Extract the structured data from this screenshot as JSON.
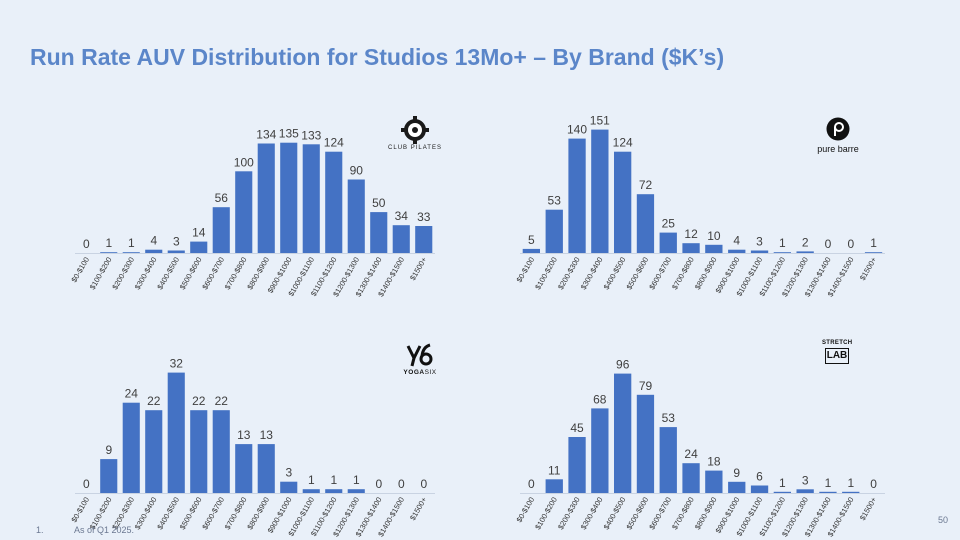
{
  "title": "Run Rate AUV Distribution for Studios 13Mo+ – By Brand ($K’s)",
  "footnote": {
    "marker": "1.",
    "text": "As of Q1 2025."
  },
  "page_number": "50",
  "colors": {
    "bar": "#4472c4",
    "title": "#5b86c9",
    "background": "#e9f0f9",
    "label": "#404040"
  },
  "logos": {
    "club_pilates": {
      "icon": "flower-gear-icon",
      "text": "CLUB PILATES"
    },
    "pure_barre": {
      "icon": "circle-p-icon",
      "text": "pure barre"
    },
    "yogasix": {
      "icon": "y6-icon",
      "text_bold": "YOGA",
      "text_light": "SIX"
    },
    "stretch_lab": {
      "icon": "stretch-lab-icon",
      "top": "STRETCH",
      "bottom": "LAB"
    }
  },
  "chart_data": [
    {
      "type": "bar",
      "brand": "Club Pilates",
      "categories": [
        "$0-$100",
        "$100-$200",
        "$200-$300",
        "$300-$400",
        "$400-$500",
        "$500-$600",
        "$600-$700",
        "$700-$800",
        "$800-$900",
        "$900-$1000",
        "$1000-$1100",
        "$1100-$1200",
        "$1200-$1300",
        "$1300-$1400",
        "$1400-$1500",
        "$1500+"
      ],
      "values": [
        0,
        1,
        1,
        4,
        3,
        14,
        56,
        100,
        134,
        135,
        133,
        124,
        90,
        50,
        34,
        33
      ],
      "ylim": [
        0,
        175
      ]
    },
    {
      "type": "bar",
      "brand": "Pure Barre",
      "categories": [
        "$0-$100",
        "$100-$200",
        "$200-$300",
        "$300-$400",
        "$400-$500",
        "$500-$600",
        "$600-$700",
        "$700-$800",
        "$800-$900",
        "$900-$1000",
        "$1000-$1100",
        "$1100-$1200",
        "$1200-$1300",
        "$1300-$1400",
        "$1400-$1500",
        "$1500+"
      ],
      "values": [
        5,
        53,
        140,
        151,
        124,
        72,
        25,
        12,
        10,
        4,
        3,
        1,
        2,
        0,
        0,
        1
      ],
      "ylim": [
        0,
        175
      ]
    },
    {
      "type": "bar",
      "brand": "YogaSix",
      "categories": [
        "$0-$100",
        "$100-$200",
        "$200-$300",
        "$300-$400",
        "$400-$500",
        "$500-$600",
        "$600-$700",
        "$700-$800",
        "$800-$900",
        "$900-$1000",
        "$1000-$1100",
        "$1100-$1200",
        "$1200-$1300",
        "$1300-$1400",
        "$1400-$1500",
        "$1500+"
      ],
      "values": [
        0,
        9,
        24,
        22,
        32,
        22,
        22,
        13,
        13,
        3,
        1,
        1,
        1,
        0,
        0,
        0
      ],
      "ylim": [
        0,
        38
      ]
    },
    {
      "type": "bar",
      "brand": "Stretch Lab",
      "categories": [
        "$0-$100",
        "$100-$200",
        "$200-$300",
        "$300-$400",
        "$400-$500",
        "$500-$600",
        "$600-$700",
        "$700-$800",
        "$800-$900",
        "$900-$1000",
        "$1000-$1100",
        "$1100-$1200",
        "$1200-$1300",
        "$1300-$1400",
        "$1400-$1500",
        "$1500+"
      ],
      "values": [
        0,
        11,
        45,
        68,
        96,
        79,
        53,
        24,
        18,
        9,
        6,
        1,
        3,
        1,
        1,
        0
      ],
      "ylim": [
        0,
        115
      ]
    }
  ]
}
